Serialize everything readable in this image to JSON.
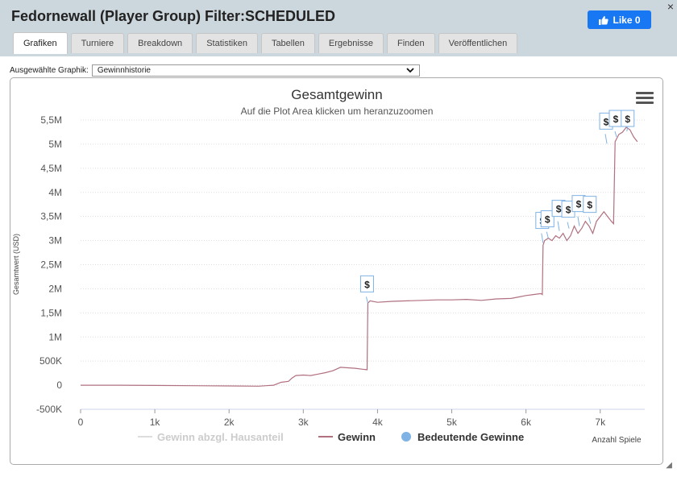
{
  "window": {
    "title": "Fedornewall (Player Group) Filter:SCHEDULED",
    "close_label": "×",
    "like_label": "Like 0"
  },
  "tabs": [
    "Grafiken",
    "Turniere",
    "Breakdown",
    "Statistiken",
    "Tabellen",
    "Ergebnisse",
    "Finden",
    "Veröffentlichen"
  ],
  "active_tab": "Grafiken",
  "graph_select": {
    "label": "Ausgewählte Graphik:",
    "value": "Gewinnhistorie"
  },
  "chart_data": {
    "type": "line",
    "title": "Gesamtgewinn",
    "subtitle": "Auf die Plot Area klicken um heranzuzoomen",
    "ylabel": "Gesamtwert (USD)",
    "xlabel": "Anzahl Spiele",
    "yticks": [
      "5,5M",
      "5M",
      "4,5M",
      "4M",
      "3,5M",
      "3M",
      "2,5M",
      "2M",
      "1,5M",
      "1M",
      "500K",
      "0",
      "-500K"
    ],
    "xticks": [
      "0",
      "1k",
      "2k",
      "3k",
      "4k",
      "5k",
      "6k",
      "7k"
    ],
    "ylim": [
      -500000,
      5500000
    ],
    "xlim": [
      0,
      7600
    ],
    "grid": "horizontal dotted",
    "legend_position": "bottom",
    "series": [
      {
        "name": "Gewinn abzgl. Hausanteil",
        "color": "#dddddd",
        "points": []
      },
      {
        "name": "Gewinn",
        "color": "#b07080",
        "points": [
          [
            0,
            0
          ],
          [
            500,
            0
          ],
          [
            1000,
            -5000
          ],
          [
            1500,
            -10000
          ],
          [
            2000,
            -15000
          ],
          [
            2400,
            -20000
          ],
          [
            2500,
            -10000
          ],
          [
            2600,
            0
          ],
          [
            2650,
            30000
          ],
          [
            2700,
            60000
          ],
          [
            2800,
            80000
          ],
          [
            2850,
            150000
          ],
          [
            2900,
            200000
          ],
          [
            3000,
            210000
          ],
          [
            3100,
            200000
          ],
          [
            3200,
            230000
          ],
          [
            3300,
            260000
          ],
          [
            3400,
            300000
          ],
          [
            3500,
            370000
          ],
          [
            3600,
            360000
          ],
          [
            3700,
            350000
          ],
          [
            3800,
            330000
          ],
          [
            3860,
            320000
          ],
          [
            3870,
            1700000
          ],
          [
            3900,
            1750000
          ],
          [
            4000,
            1720000
          ],
          [
            4200,
            1740000
          ],
          [
            4400,
            1750000
          ],
          [
            4600,
            1760000
          ],
          [
            4800,
            1770000
          ],
          [
            5000,
            1770000
          ],
          [
            5200,
            1780000
          ],
          [
            5400,
            1760000
          ],
          [
            5600,
            1790000
          ],
          [
            5800,
            1800000
          ],
          [
            5900,
            1830000
          ],
          [
            6000,
            1860000
          ],
          [
            6100,
            1880000
          ],
          [
            6200,
            1900000
          ],
          [
            6220,
            1880000
          ],
          [
            6230,
            2900000
          ],
          [
            6250,
            3000000
          ],
          [
            6300,
            3050000
          ],
          [
            6350,
            3000000
          ],
          [
            6400,
            3100000
          ],
          [
            6450,
            3050000
          ],
          [
            6500,
            3150000
          ],
          [
            6550,
            3000000
          ],
          [
            6600,
            3100000
          ],
          [
            6650,
            3300000
          ],
          [
            6700,
            3150000
          ],
          [
            6750,
            3250000
          ],
          [
            6800,
            3400000
          ],
          [
            6850,
            3300000
          ],
          [
            6900,
            3150000
          ],
          [
            6950,
            3400000
          ],
          [
            7000,
            3500000
          ],
          [
            7050,
            3600000
          ],
          [
            7100,
            3500000
          ],
          [
            7150,
            3400000
          ],
          [
            7180,
            3350000
          ],
          [
            7200,
            5050000
          ],
          [
            7250,
            5200000
          ],
          [
            7300,
            5250000
          ],
          [
            7350,
            5350000
          ],
          [
            7400,
            5300000
          ],
          [
            7450,
            5150000
          ],
          [
            7500,
            5050000
          ]
        ]
      }
    ],
    "markers": {
      "name": "Bedeutende Gewinne",
      "color": "#7fb2e5",
      "label": "$",
      "points": [
        [
          3870,
          1700000
        ],
        [
          6230,
          2950000
        ],
        [
          6300,
          3050000
        ],
        [
          6450,
          3200000
        ],
        [
          6580,
          3250000
        ],
        [
          6720,
          3300000
        ],
        [
          6870,
          3350000
        ],
        [
          7090,
          5010000
        ],
        [
          7220,
          5150000
        ],
        [
          7380,
          5450000
        ]
      ]
    }
  }
}
